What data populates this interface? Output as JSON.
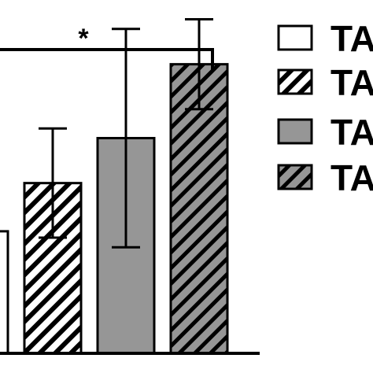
{
  "chart_data": {
    "type": "bar",
    "title": "",
    "xlabel": "",
    "ylabel": "",
    "ylim": [
      0,
      110
    ],
    "bars": [
      {
        "fill": "#ffffff",
        "hatched": false,
        "value": 38,
        "error": null
      },
      {
        "fill": "#ffffff",
        "hatched": true,
        "value": 53,
        "error": 17
      },
      {
        "fill": "#969696",
        "hatched": false,
        "value": 67,
        "error": 34
      },
      {
        "fill": "#969696",
        "hatched": true,
        "value": 90,
        "error": 14
      }
    ],
    "significance": {
      "label": "*",
      "from_bar": 0,
      "to_bar": 3
    },
    "legend": {
      "position": "right",
      "entries": [
        {
          "label": "TA",
          "fill": "#ffffff",
          "hatched": false
        },
        {
          "label": "TA",
          "fill": "#ffffff",
          "hatched": true
        },
        {
          "label": "TA",
          "fill": "#969696",
          "hatched": false
        },
        {
          "label": "TA",
          "fill": "#969696",
          "hatched": true
        }
      ]
    }
  }
}
